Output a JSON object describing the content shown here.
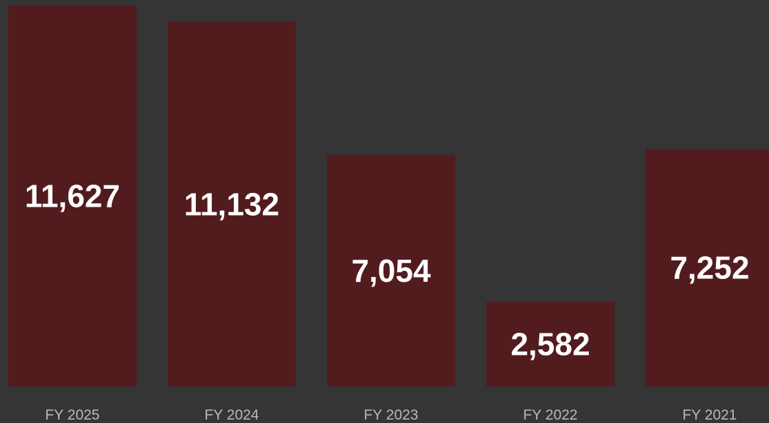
{
  "chart_data": {
    "type": "bar",
    "categories": [
      "FY 2025",
      "FY 2024",
      "FY 2023",
      "FY 2022",
      "FY 2021"
    ],
    "values": [
      11627,
      11132,
      7054,
      2582,
      7252
    ],
    "value_labels": [
      "11,627",
      "11,132",
      "7,054",
      "2,582",
      "7,252"
    ],
    "ylim": [
      0,
      11627
    ],
    "grid": false,
    "legend": "none",
    "colors": {
      "background": "#353535",
      "bar": "#521c1e",
      "value_text": "#ffffff",
      "category_text": "#b9b9b9"
    }
  }
}
